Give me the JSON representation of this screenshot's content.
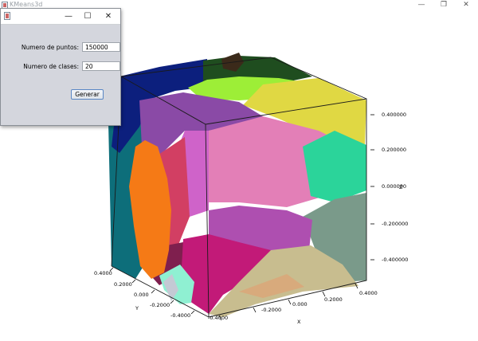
{
  "main_window": {
    "title": "KMeans3d",
    "controls": {
      "minimize": "—",
      "maximize": "❐",
      "close": "✕"
    }
  },
  "dialog": {
    "controls": {
      "minimize": "—",
      "maximize": "☐",
      "close": "✕"
    },
    "fields": [
      {
        "label": "Numero de puntos:",
        "value": "150000"
      },
      {
        "label": "Numero de clases:",
        "value": "20"
      }
    ],
    "button_label": "Generar"
  },
  "plot": {
    "z_ticks": [
      "0.400000",
      "0.200000",
      "0.000000",
      "-0.200000",
      "-0.400000"
    ],
    "z_label": "Z",
    "x_ticks": [
      "-0.4000",
      "-0.2000",
      "0.000",
      "0.2000",
      "0.4000"
    ],
    "x_label": "X",
    "y_ticks": [
      "0.4000",
      "0.2000",
      "0.000",
      "-0.2000",
      "-0.4000"
    ],
    "y_label": "Y",
    "cluster_colors": [
      "#0c1f7d",
      "#1f4d1f",
      "#3b2a1a",
      "#9dee37",
      "#e0d843",
      "#2bd49a",
      "#7a9a8a",
      "#c8bd8f",
      "#d8aa7c",
      "#c21a78",
      "#8a4aa6",
      "#e37fb7",
      "#7f1f4e",
      "#d23f63",
      "#f57a16",
      "#0d6e7a",
      "#8ff0d2",
      "#c4c9d4"
    ]
  }
}
